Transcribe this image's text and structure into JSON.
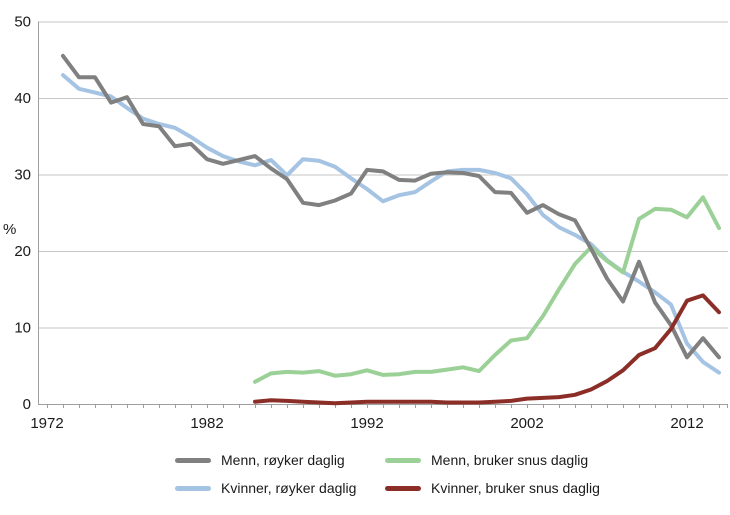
{
  "chart_data": {
    "type": "line",
    "title": "",
    "xlabel": "",
    "ylabel": "%",
    "x_range": [
      1971.4,
      2014.7
    ],
    "ylim": [
      0,
      50
    ],
    "x_ticks_labeled": [
      "1972",
      "1982",
      "1992",
      "2002",
      "2012"
    ],
    "x_minor_tick_years": [
      1972,
      2014
    ],
    "y_ticks": [
      "0",
      "10",
      "20",
      "30",
      "40",
      "50"
    ],
    "grid": "horizontal",
    "legend_position": "bottom",
    "background_color": "#ffffff",
    "gridline_color": "#c6c6c6",
    "axis_color": "#9e9e9e",
    "label_color": "#1a1a1a",
    "series": [
      {
        "name": "Menn, røyker daglig",
        "color": "#808080",
        "start_year": 1973,
        "values": [
          45.5,
          42.7,
          42.7,
          39.4,
          40.1,
          36.6,
          36.3,
          33.7,
          34.0,
          32.0,
          31.4,
          31.9,
          32.4,
          30.8,
          29.4,
          26.3,
          26.0,
          26.6,
          27.5,
          30.6,
          30.4,
          29.3,
          29.2,
          30.1,
          30.3,
          30.2,
          29.8,
          27.7,
          27.6,
          25.0,
          26.0,
          24.8,
          24.0,
          20.3,
          16.4,
          13.4,
          18.6,
          13.3,
          10.3,
          6.1,
          8.6,
          6.1
        ]
      },
      {
        "name": "Kvinner, røyker daglig",
        "color": "#a5c3e2",
        "start_year": 1973,
        "values": [
          43.0,
          41.2,
          40.7,
          40.2,
          38.7,
          37.3,
          36.6,
          36.1,
          34.9,
          33.5,
          32.4,
          31.7,
          31.2,
          31.9,
          29.9,
          32.0,
          31.8,
          31.0,
          29.5,
          28.1,
          26.5,
          27.3,
          27.7,
          29.1,
          30.4,
          30.6,
          30.6,
          30.2,
          29.5,
          27.4,
          24.7,
          23.1,
          22.1,
          20.9,
          18.8,
          17.3,
          16.0,
          14.6,
          13.0,
          7.9,
          5.5,
          4.1
        ]
      },
      {
        "name": "Menn, bruker snus daglig",
        "color": "#9bd096",
        "start_year": 1985,
        "values": [
          2.9,
          4.0,
          4.2,
          4.1,
          4.3,
          3.7,
          3.9,
          4.4,
          3.8,
          3.9,
          4.2,
          4.2,
          4.5,
          4.8,
          4.3,
          6.4,
          8.3,
          8.6,
          11.5,
          15.0,
          18.3,
          20.5,
          18.7,
          17.2,
          24.2,
          25.5,
          25.4,
          24.4,
          27.0,
          23.0
        ]
      },
      {
        "name": "Kvinner, bruker snus daglig",
        "color": "#8c2e28",
        "start_year": 1985,
        "values": [
          0.3,
          0.5,
          0.4,
          0.3,
          0.2,
          0.1,
          0.2,
          0.3,
          0.3,
          0.3,
          0.3,
          0.3,
          0.2,
          0.2,
          0.2,
          0.3,
          0.4,
          0.7,
          0.8,
          0.9,
          1.2,
          1.9,
          3.0,
          4.4,
          6.4,
          7.3,
          9.8,
          13.5,
          14.2,
          12.0
        ]
      }
    ]
  },
  "legend": {
    "row_major_series_order": [
      0,
      2,
      1,
      3
    ]
  }
}
